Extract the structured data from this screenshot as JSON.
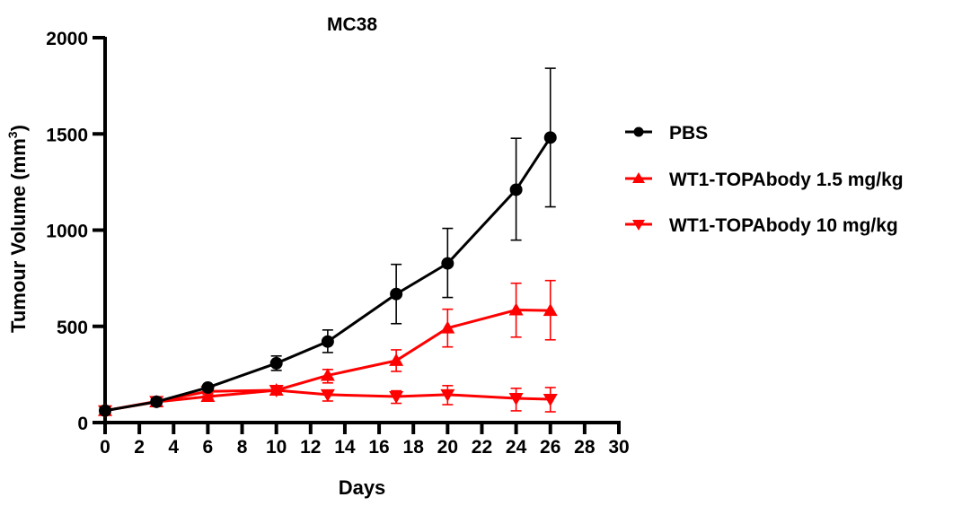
{
  "chart_data": {
    "type": "line",
    "title": "MC38",
    "xlabel": "Days",
    "ylabel": "Tumour Volume (mm",
    "ylabel_superscript": "3",
    "ylabel_suffix": ")",
    "xlim": [
      0,
      30
    ],
    "ylim": [
      0,
      2000
    ],
    "xticks": [
      0,
      2,
      4,
      6,
      8,
      10,
      12,
      14,
      16,
      18,
      20,
      22,
      24,
      26,
      28,
      30
    ],
    "yticks": [
      0,
      500,
      1000,
      1500,
      2000
    ],
    "grid": false,
    "legend_position": "right",
    "series": [
      {
        "name": "PBS",
        "color": "#000000",
        "marker": "circle",
        "x": [
          0,
          3,
          6,
          10,
          13,
          17,
          20,
          24,
          26
        ],
        "y": [
          62,
          108,
          182,
          308,
          421,
          668,
          827,
          1210,
          1481
        ],
        "err_low": [
          50,
          95,
          170,
          271,
          364,
          514,
          650,
          948,
          1121
        ],
        "err_high": [
          74,
          121,
          194,
          346,
          481,
          822,
          1009,
          1477,
          1841
        ]
      },
      {
        "name": "WT1-TOPAbody 1.5 mg/kg",
        "color": "#ff0000",
        "marker": "triangle-up",
        "x": [
          0,
          3,
          6,
          10,
          13,
          17,
          20,
          24,
          26
        ],
        "y": [
          62,
          107,
          135,
          168,
          245,
          322,
          491,
          585,
          582
        ],
        "err_low": [
          48,
          90,
          125,
          155,
          206,
          266,
          393,
          444,
          430
        ],
        "err_high": [
          76,
          128,
          145,
          181,
          276,
          378,
          589,
          724,
          738
        ]
      },
      {
        "name": "WT1-TOPAbody 10 mg/kg",
        "color": "#ff0000",
        "marker": "triangle-down",
        "x": [
          0,
          3,
          6,
          10,
          13,
          17,
          20,
          24,
          26
        ],
        "y": [
          62,
          110,
          162,
          168,
          145,
          135,
          145,
          126,
          121
        ],
        "err_low": [
          48,
          92,
          152,
          155,
          112,
          100,
          93,
          61,
          56
        ],
        "err_high": [
          76,
          130,
          172,
          181,
          164,
          165,
          192,
          178,
          182
        ]
      }
    ]
  }
}
